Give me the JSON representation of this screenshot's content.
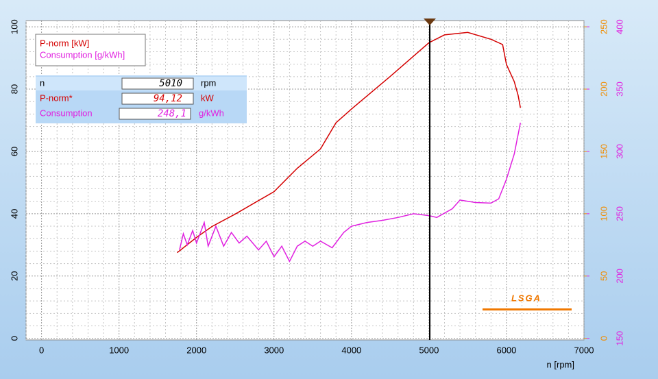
{
  "chart_data": {
    "type": "line",
    "x_label": "n [rpm]",
    "xlim": [
      -200,
      7000
    ],
    "xticks": [
      0,
      1000,
      2000,
      3000,
      4000,
      5000,
      6000,
      7000
    ],
    "ylim": [
      -0.5,
      102
    ],
    "yticks": [
      0,
      20,
      40,
      60,
      80,
      100
    ],
    "y2lim": [
      -1.25,
      255
    ],
    "y2ticks": [
      0,
      50,
      100,
      150,
      200,
      250
    ],
    "y2color": "#f08c00",
    "y3lim": [
      148.75,
      405
    ],
    "y3ticks": [
      150,
      200,
      250,
      300,
      350,
      400
    ],
    "y3color": "#e020e0",
    "grid": true,
    "series": [
      {
        "name": "P-norm [kW]",
        "color": "#d40000",
        "x": [
          1750,
          2000,
          2200,
          2500,
          3000,
          3300,
          3600,
          3800,
          4000,
          4500,
          5000,
          5200,
          5500,
          5800,
          5950,
          6000,
          6100,
          6150,
          6180
        ],
        "values": [
          27.5,
          32.4,
          35.9,
          39.9,
          47.1,
          54.6,
          60.8,
          69.2,
          73.6,
          84.1,
          94.9,
          97.4,
          98.2,
          96,
          94.3,
          87.9,
          82.4,
          78,
          74
        ]
      },
      {
        "name": "Consumption [g/kWh]",
        "color": "#e020e0",
        "axis": "y3",
        "x": [
          1780,
          1830,
          1880,
          1950,
          2000,
          2100,
          2150,
          2250,
          2350,
          2450,
          2550,
          2650,
          2800,
          2900,
          3000,
          3100,
          3200,
          3300,
          3400,
          3500,
          3600,
          3750,
          3900,
          4000,
          4200,
          4400,
          4600,
          4800,
          5000,
          5100,
          5300,
          5400,
          5600,
          5800,
          5900,
          6000,
          6100,
          6180
        ],
        "values": [
          221,
          234,
          225,
          236.5,
          226.5,
          243,
          224,
          240,
          224,
          235,
          226.5,
          232,
          221,
          228,
          215.5,
          224,
          211.7,
          224,
          228,
          224,
          228,
          222.7,
          235,
          240,
          243,
          244.7,
          247,
          250,
          248.5,
          247,
          254,
          261,
          259,
          258.5,
          262,
          277.7,
          298,
          323
        ]
      }
    ],
    "cursor": 5010,
    "readout": [
      {
        "label": "n",
        "value": "5010",
        "unit": "rpm"
      },
      {
        "label": "P-norm*",
        "value": "94,12",
        "unit": "kW"
      },
      {
        "label": "Consumption",
        "value": "248,1",
        "unit": "g/kWh"
      }
    ],
    "logo": "LSGA"
  }
}
